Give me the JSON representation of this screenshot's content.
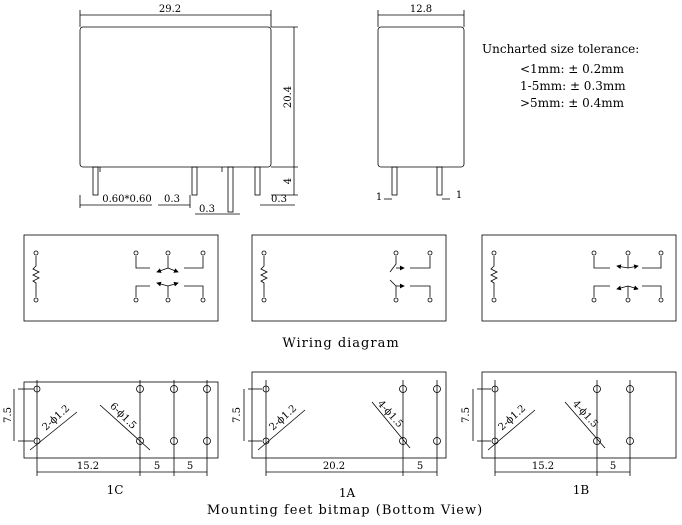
{
  "front_view": {
    "width_label": "29.2",
    "height_label": "20.4",
    "pin_length_label": "4",
    "pin_size_label": "0.60*0.60",
    "gap_label_1": "0.3",
    "gap_label_2": "0.3",
    "gap_label_3": "0.3"
  },
  "side_view": {
    "width_label": "12.8",
    "pin_offset_left": "1",
    "pin_offset_right": "1"
  },
  "tolerance": {
    "title": "Uncharted size tolerance:",
    "lines": [
      "<1mm: ± 0.2mm",
      "1-5mm: ± 0.3mm",
      ">5mm: ± 0.4mm"
    ]
  },
  "wiring": {
    "title": "Wiring diagram"
  },
  "mounting": {
    "title": "Mounting feet bitmap (Bottom View)",
    "layouts": [
      {
        "name": "1C",
        "pitch_v": "7.5",
        "hole_label_a": "2-ϕ1.2",
        "hole_label_b": "6-ϕ1.5",
        "dim_main": "15.2",
        "dim_b": "5",
        "dim_c": "5"
      },
      {
        "name": "1A",
        "pitch_v": "7.5",
        "hole_label_a": "2-ϕ1.2",
        "hole_label_b": "4-ϕ1.5",
        "dim_main": "20.2",
        "dim_b": "5"
      },
      {
        "name": "1B",
        "pitch_v": "7.5",
        "hole_label_a": "2-ϕ1.2",
        "hole_label_b": "4-ϕ1.5",
        "dim_main": "15.2",
        "dim_b": "5"
      }
    ]
  }
}
